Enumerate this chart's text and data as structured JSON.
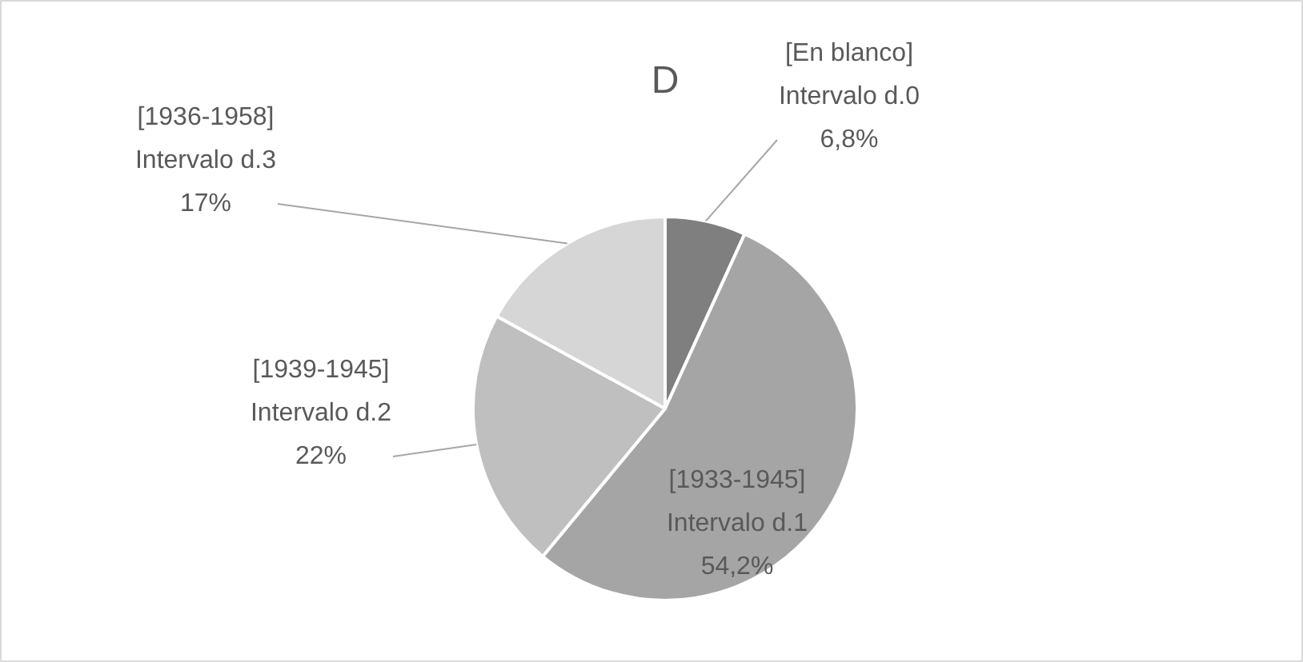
{
  "chart_data": {
    "type": "pie",
    "title": "D",
    "categories": [
      "[En blanco]\nIntervalo d.0",
      "[1933-1945]\nIntervalo d.1",
      "[1939-1945]\nIntervalo d.2",
      "[1936-1958]\nIntervalo d.3"
    ],
    "values": [
      6.8,
      54.2,
      22,
      17
    ],
    "colors": [
      "#7f7f7f",
      "#a5a5a5",
      "#bfbfbf",
      "#d6d6d6"
    ],
    "value_labels": [
      "6,8%",
      "54,2%",
      "22%",
      "17%"
    ]
  }
}
